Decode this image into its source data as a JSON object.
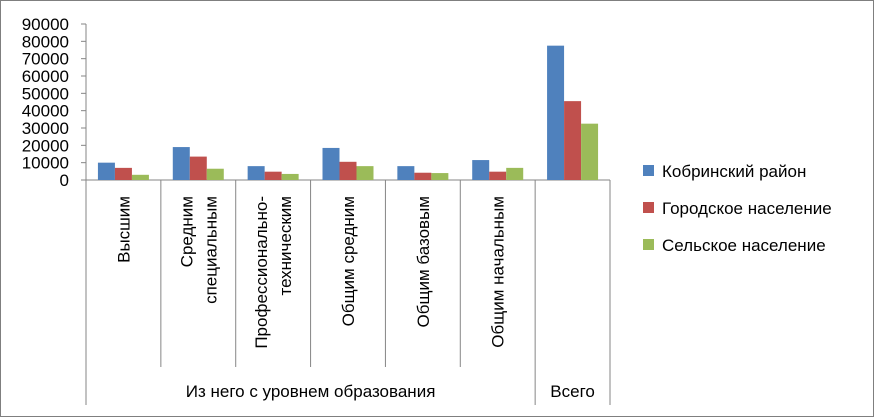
{
  "chart_data": {
    "type": "bar",
    "title": "",
    "xlabel": "",
    "ylabel": "",
    "ylim": [
      0,
      90000
    ],
    "yticks": [
      0,
      10000,
      20000,
      30000,
      40000,
      50000,
      60000,
      70000,
      80000,
      90000
    ],
    "grid": false,
    "legend_position": "right",
    "categories": [
      "Высшим",
      "Средним специальным",
      "Профессионально-техническим",
      "Общим средним",
      "Общим базовым",
      "Общим начальным",
      "Всего"
    ],
    "category_lines": [
      [
        "Высшим"
      ],
      [
        "Средним",
        "специальным"
      ],
      [
        "Профессионально-",
        "техническим"
      ],
      [
        "Общим средним"
      ],
      [
        "Общим базовым"
      ],
      [
        "Общим начальным"
      ],
      []
    ],
    "groups": [
      {
        "label": "Из него с уровнем образования",
        "span": 6
      },
      {
        "label": "Всего",
        "span": 1
      }
    ],
    "series": [
      {
        "name": "Кобринский район",
        "color": "#4f81bd",
        "values": [
          10000,
          19000,
          8000,
          18500,
          8000,
          11500,
          77500
        ]
      },
      {
        "name": "Городское население",
        "color": "#c0504d",
        "values": [
          7000,
          13500,
          4800,
          10500,
          4200,
          4800,
          45500
        ]
      },
      {
        "name": "Сельское население",
        "color": "#9bbb59",
        "values": [
          3000,
          6500,
          3500,
          8000,
          4000,
          7000,
          32500
        ]
      }
    ]
  }
}
